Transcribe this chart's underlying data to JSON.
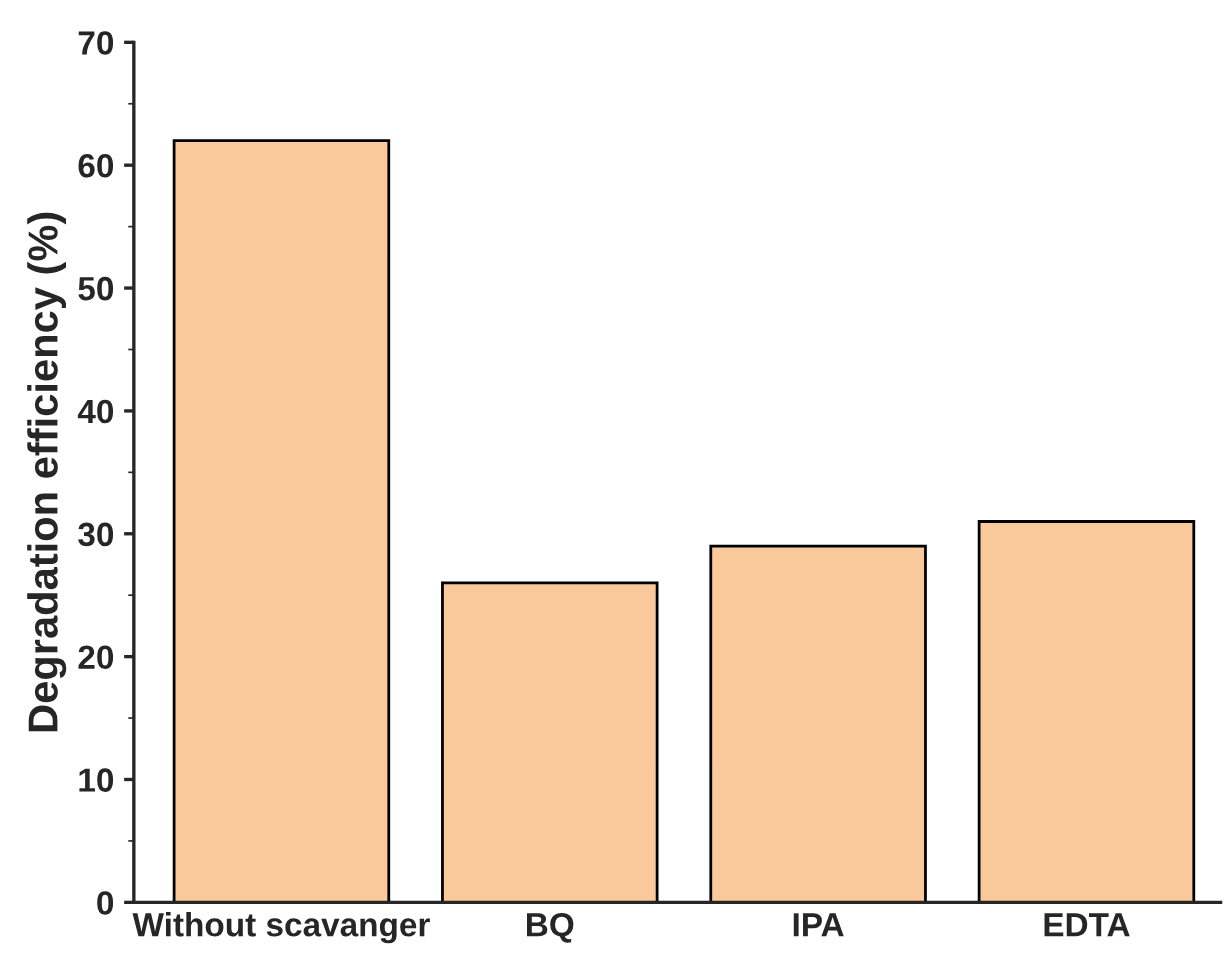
{
  "chart_data": {
    "type": "bar",
    "ylabel": "Degradation efficiency (%)",
    "categories": [
      "Without scavanger",
      "BQ",
      "IPA",
      "EDTA"
    ],
    "values": [
      62,
      26,
      29,
      31
    ],
    "color": "#f9c89b",
    "ylim": [
      0,
      70
    ],
    "yticks": [
      0,
      10,
      20,
      30,
      40,
      50,
      60,
      70
    ],
    "grid": false,
    "legend": false
  }
}
